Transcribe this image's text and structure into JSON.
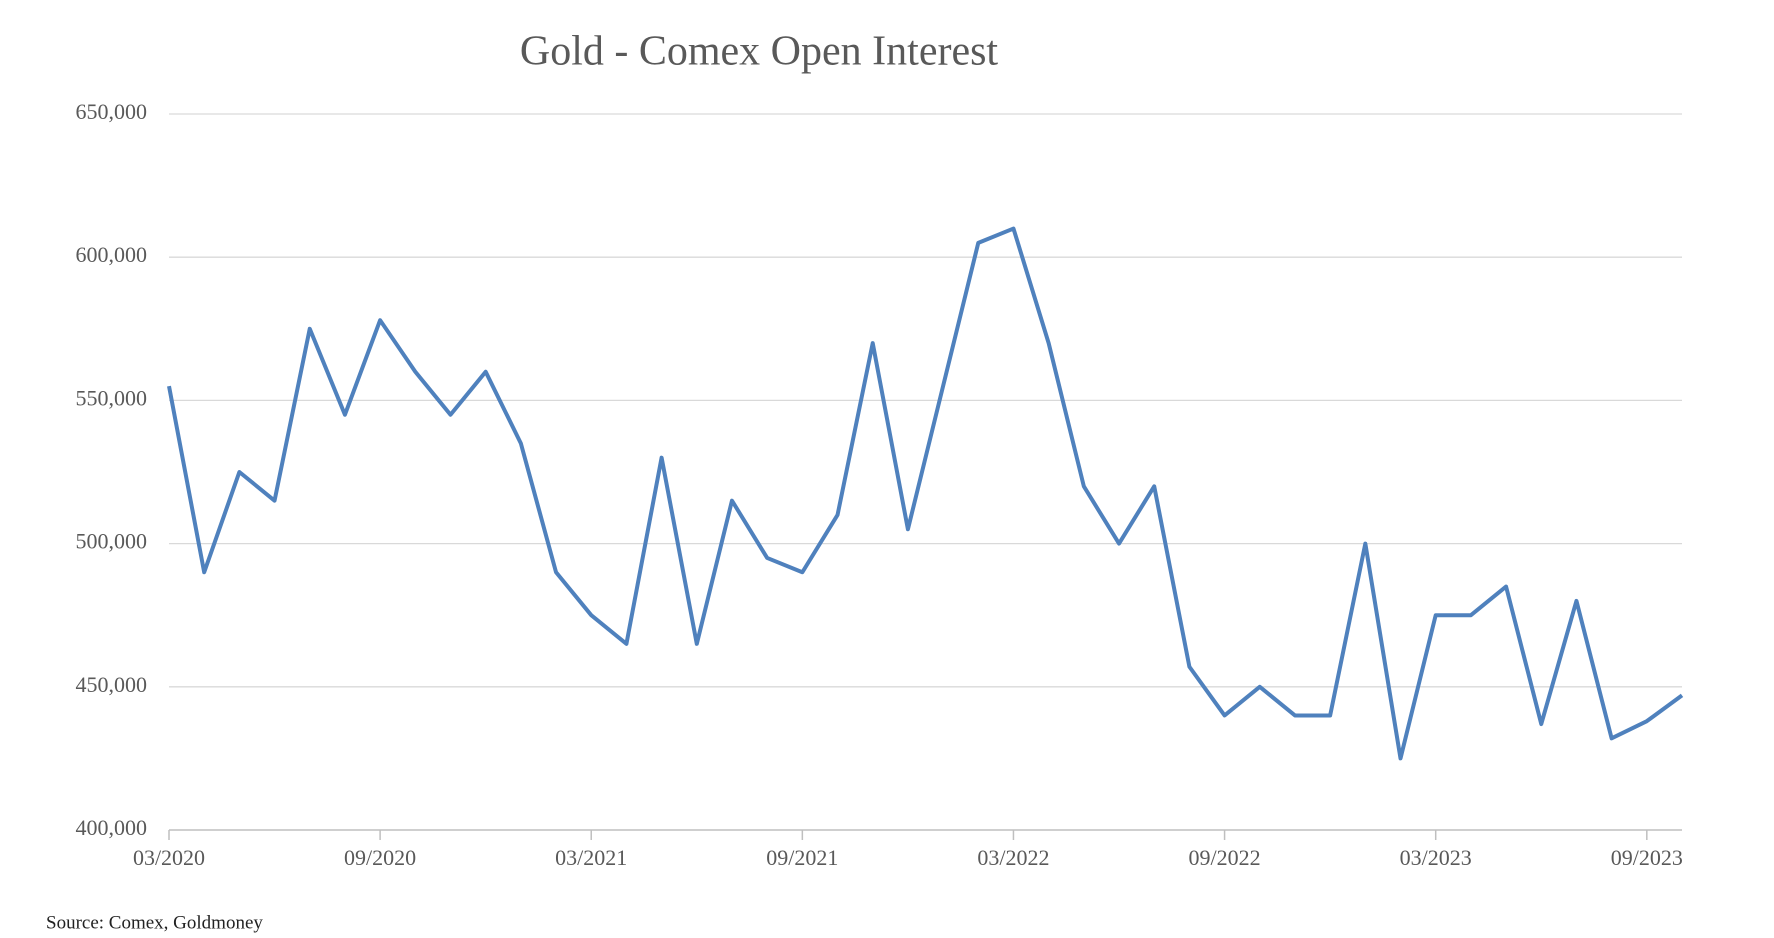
{
  "chart_data": {
    "type": "line",
    "title": "Gold - Comex Open Interest",
    "source": "Source: Comex, Goldmoney",
    "x": [
      "2020-03",
      "2020-04",
      "2020-05",
      "2020-06",
      "2020-07",
      "2020-08",
      "2020-09",
      "2020-10",
      "2020-11",
      "2020-12",
      "2021-01",
      "2021-02",
      "2021-03",
      "2021-04",
      "2021-05",
      "2021-06",
      "2021-07",
      "2021-08",
      "2021-09",
      "2021-10",
      "2021-11",
      "2021-12",
      "2022-01",
      "2022-02",
      "2022-03",
      "2022-04",
      "2022-05",
      "2022-06",
      "2022-07",
      "2022-08",
      "2022-09",
      "2022-10",
      "2022-11",
      "2022-12",
      "2023-01",
      "2023-02",
      "2023-03",
      "2023-04",
      "2023-05",
      "2023-06",
      "2023-07",
      "2023-08",
      "2023-09",
      "2023-10"
    ],
    "series": [
      {
        "color": "#4f81bd",
        "values": [
          555000,
          490000,
          525000,
          515000,
          575000,
          545000,
          578000,
          560000,
          545000,
          560000,
          535000,
          490000,
          475000,
          465000,
          530000,
          465000,
          515000,
          495000,
          490000,
          510000,
          570000,
          505000,
          555000,
          605000,
          610000,
          570000,
          520000,
          500000,
          520000,
          457000,
          440000,
          450000,
          440000,
          440000,
          500000,
          425000,
          475000,
          475000,
          485000,
          437000,
          480000,
          432000,
          438000,
          447000
        ]
      }
    ],
    "xlim": [
      "2020-03",
      "2023-10"
    ],
    "xticks": [
      {
        "value": "2020-03",
        "label": "03/2020"
      },
      {
        "value": "2020-09",
        "label": "09/2020"
      },
      {
        "value": "2021-03",
        "label": "03/2021"
      },
      {
        "value": "2021-09",
        "label": "09/2021"
      },
      {
        "value": "2022-03",
        "label": "03/2022"
      },
      {
        "value": "2022-09",
        "label": "09/2022"
      },
      {
        "value": "2023-03",
        "label": "03/2023"
      },
      {
        "value": "2023-09",
        "label": "09/2023"
      }
    ],
    "ylim": [
      400000,
      650000
    ],
    "yticks": [
      {
        "value": 400000,
        "label": "400,000"
      },
      {
        "value": 450000,
        "label": "450,000"
      },
      {
        "value": 500000,
        "label": "500,000"
      },
      {
        "value": 550000,
        "label": "550,000"
      },
      {
        "value": 600000,
        "label": "600,000"
      },
      {
        "value": 650000,
        "label": "650,000"
      }
    ],
    "grid": true
  }
}
